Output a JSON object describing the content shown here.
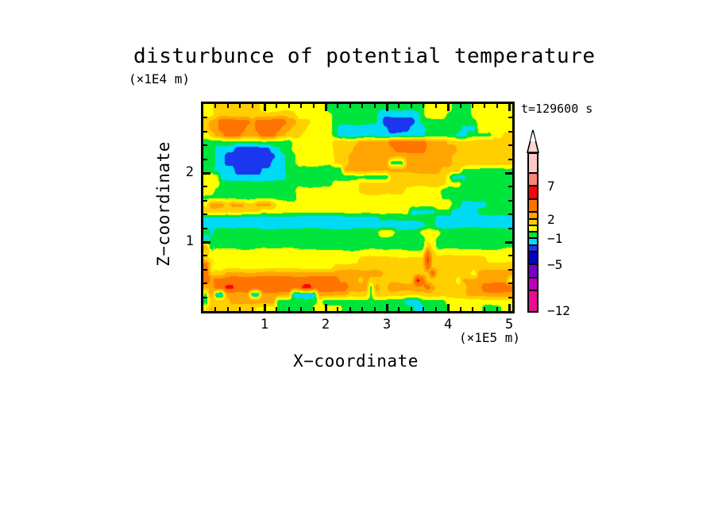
{
  "figure": {
    "title": "disturbunce of potential temperature",
    "annotation": "t=129600 s",
    "y_axis": {
      "unit": "(×1E4 m)",
      "label": "Z−coordinate",
      "major_ticks": [
        1,
        2
      ],
      "major_tick_labels": [
        "1",
        "2"
      ],
      "minor_tick_step": 0.2,
      "range": [
        0,
        3.0
      ]
    },
    "x_axis": {
      "unit": "(×1E5 m)",
      "label": "X−coordinate",
      "major_ticks": [
        1,
        2,
        3,
        4,
        5
      ],
      "major_tick_labels": [
        "1",
        "2",
        "3",
        "4",
        "5"
      ],
      "minor_tick_step": 0.2,
      "range": [
        0,
        5.05
      ]
    }
  },
  "chart_data": {
    "type": "heatmap",
    "subtype": "filled_contour",
    "title": "disturbunce of potential temperature",
    "xlabel": "X−coordinate",
    "ylabel": "Z−coordinate",
    "x_unit": "(×1E5 m)",
    "y_unit": "(×1E4 m)",
    "annotation": "t=129600 s",
    "x_range": [
      0,
      5.05
    ],
    "y_range": [
      0,
      3.0
    ],
    "grid_on": false,
    "legend_position": "right-colorbar",
    "colorbar": {
      "levels": [
        -12,
        -9,
        -7,
        -5,
        -3,
        -2,
        -1,
        0,
        1,
        2,
        3,
        5,
        7,
        9,
        12
      ],
      "colors": [
        "#e80d92",
        "#bc00bc",
        "#7a00c8",
        "#0000c8",
        "#1a36ee",
        "#00daf5",
        "#00e53c",
        "#ffff00",
        "#ffcf00",
        "#ffa400",
        "#ff7300",
        "#f90606",
        "#ff8478",
        "#ffc9c9"
      ],
      "overflow_color": "#ffd4d4",
      "labels": [
        {
          "value": 7,
          "text": "7"
        },
        {
          "value": 2,
          "text": "2"
        },
        {
          "value": -1,
          "text": "−1"
        },
        {
          "value": -5,
          "text": "−5"
        },
        {
          "value": -12,
          "text": "−12"
        }
      ]
    },
    "char_values": {
      "b": -2.6,
      "c": -1.5,
      "g": -0.5,
      "y": 0.5,
      "d": 1.5,
      "a": 2.5,
      "o": 3.9,
      "r": 5.8
    },
    "field_grid_rows": [
      "yydddddddddyyyyyyyyyyyyygggggggggggggggggggyyyyyggggyyyyyyyy",
      "yyddddddddddddddddyyyyyyygggggggggccccccccgyyyygggggyyyyyyyy",
      "daaooooooaooooooaadddyyyygggggggggcbbbbbbcgggggggggggyyyyyyy",
      "daaoooooaaoooooaadddyyyyygccccccccccbbbbcccgggggggcccyyyyyyy",
      "ydaaoooaaaaoooaadddyyyyyygcccccccccccccccccggggggccgggggyydd",
      "gggggggggggggggggyyyyyyyydddddaaaaaaoooooooaaaaddddddddddddd",
      "ggccccbbbbbbbccggyyyyyyyyddddaaaaaaaaooooooaaaaaaddddddddddd",
      "ggccbbbbbbbbbbccggyyyyyyydddaaaaaaaaaaaaaaaaaaaadddddddddddd",
      "ggccbbbbbbbbbcccggyyyyyyydddaaaaaaaagggaaaaaaaaadddddddddddd",
      "ggccccbbbbbcccccgggggggggggaaaaaaaaaaaaaaaaaaaddddgggggggggg",
      "yyycccccccccccccggggggggggggggggggggdddddddddddycccggggggggg",
      "yyyggggggggggggggggggggggyyyyydddddddddddddddddyyygggggggggg",
      "yyggggggggggggggggyyyyyyyyyyyydddddddddyyyyyyygggggggggggggg",
      "ggggggggggggggggggyyyyyyyyyyyyyyyyyyyyyyyyyyyygggggggggggggg",
      "yaaadaaaddaaadyyyyyyyyyyyyyyyyyyyyyyyyyyyyyyyyyyggcccccggggggg",
      "dddddddddddyyyyyyyyyyyyyyyyyyyyyyyyyyyyycccccgggcccccggggggg",
      "ccccccccccccccccccccccccccccccccccgggggggggggccccccccccccccc",
      "cccccccccccccccccccccccccccccccccccccccccccggccccccccccccccc",
      "gcggggggggggggggggggggggggggggggggyyگgggggyyyyggggggggggggggg",
      "cggggggggggggggggggggggggggggggggggggggggggyyggggggggggggggg",
      "dcgggggggggggggggggggggggggggggggggggggggggdygggggggggggggggg",
      "dyyyyyyyyyyyyyyyyyyyyyyyyyyyyyyyyyyyyyyyyyyodyyyyyyyyyyyyyyy",
      "dyyyyyyyyyyyyyyyyyyyyyyyyyyyyydddddddddddddrdddddddddddsyyyy",
      "oyyyyyyyyyyyyyyyyyyyyyyyyddddddddddddddddddodddddddddddddddd",
      "odddaaaaaaaaaaaaaaaaaaaaaaaaaaaaaaadddddddddoddddddd aaaaaaaaa",
      "oaooooooooooooooooooooooooaaaadadddddddddrodddddd aaaaaaaaa",
      "aaoorrooooooooooooorroooooooaaaagaddaaaaaaaoaddddddaaaooooooa",
      "gaccaaaaaccaaaaaacccccaaaaaaddddgddddddddddddddddddaaaaaaaaa",
      "gddddaaaaaaaaaggggggggyggggggggggggggggcccgggggyyyyyyyyyyyyy",
      "ydddddddddyyyygggggggyyyyyyggggggggggggggccgggggyyyyyyggggyyy"
    ]
  }
}
